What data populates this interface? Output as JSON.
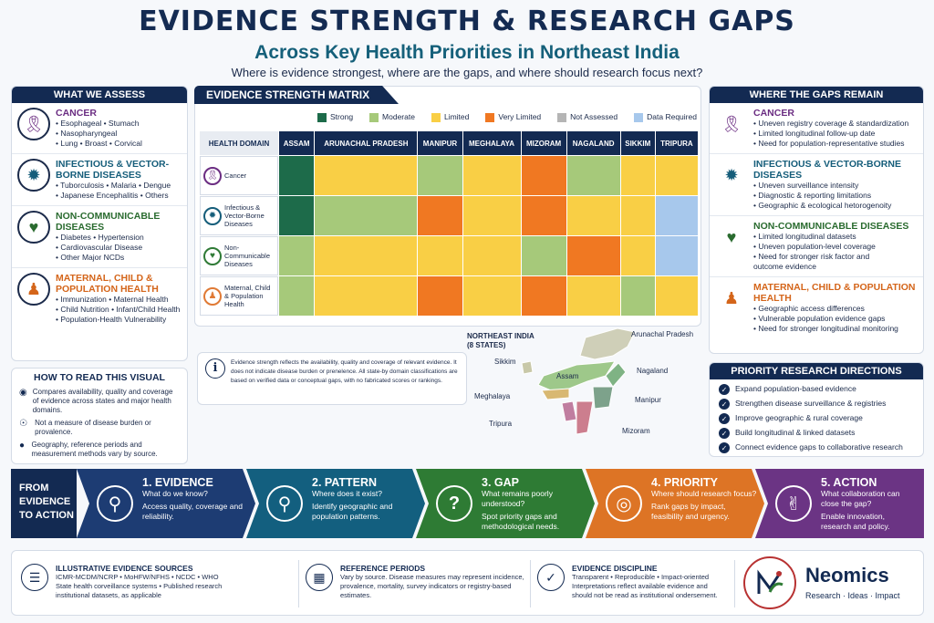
{
  "header": {
    "title": "EVIDENCE STRENGTH & RESEARCH GAPS",
    "subtitle": "Across Key Health Priorities in Northeast India",
    "question": "Where is evidence strongest, where are the gaps, and where should research focus next?"
  },
  "assess": {
    "title": "WHAT WE ASSESS",
    "items": [
      {
        "name": "CANCER",
        "line1": "• Esophageal  • Stumach",
        "line2": "• Nasopharyngeal",
        "line3": "• Lung  • Broast  • Corvical",
        "icon": "ribbon-icon"
      },
      {
        "name": "INFECTIOUS & VECTOR-BORNE DISEASES",
        "line1": "• Tuborculosis  • Malaria  • Dengue",
        "line2": "• Japanese Encephalitis  • Others",
        "line3": "",
        "icon": "virus-icon"
      },
      {
        "name": "NON-COMMUNICABLE DISEASES",
        "line1": "• Diabetes  • Hypertension",
        "line2": "• Cardiovascular Disease",
        "line3": "• Other Major NCDs",
        "icon": "heart-pulse-icon"
      },
      {
        "name": "MATERNAL, CHILD & POPULATION HEALTH",
        "line1": "• Immunization  • Maternal Health",
        "line2": "• Child Nutrition  • Infant/Child Health",
        "line3": "• Population-Health Vulnerability",
        "icon": "family-icon"
      }
    ]
  },
  "howto": {
    "title": "HOW TO READ THIS VISUAL",
    "items": [
      {
        "text": "Compares availability, quality and coverage of evidence across states and major health domains.",
        "icon": "eye-icon"
      },
      {
        "text": "Not a measure of disease burden or provalence.",
        "icon": "target-icon"
      },
      {
        "text": "Geography, reference periods and measurement methods vary by source.",
        "icon": "pin-icon"
      }
    ]
  },
  "matrix": {
    "title": "EVIDENCE STRENGTH MATRIX",
    "legend": [
      {
        "label": "Strong",
        "color": "#1d6b4a"
      },
      {
        "label": "Moderate",
        "color": "#a6c97a"
      },
      {
        "label": "Limited",
        "color": "#f9cf45"
      },
      {
        "label": "Very Limited",
        "color": "#f07822"
      },
      {
        "label": "Not Assessed",
        "color": "#b5b5b5"
      },
      {
        "label": "Data Required",
        "color": "#a7c8ec"
      }
    ],
    "corner": "HEALTH DOMAIN",
    "states": [
      "ASSAM",
      "ARUNACHAL PRADESH",
      "MANIPUR",
      "MEGHALAYA",
      "MIZORAM",
      "NAGALAND",
      "SIKKIM",
      "TRIPURA"
    ],
    "rows": [
      {
        "label": "Cancer",
        "icon": "ribbon-icon",
        "color": "#6b2d82",
        "cells": [
          "#1d6b4a",
          "#f9cf45",
          "#a6c97a",
          "#f9cf45",
          "#f07822",
          "#a6c97a",
          "#f9cf45",
          "#f9cf45"
        ]
      },
      {
        "label": "Infectious & Vector-Borne Diseases",
        "icon": "virus-icon",
        "color": "#155d7a",
        "cells": [
          "#1d6b4a",
          "#a6c97a",
          "#f07822",
          "#f9cf45",
          "#f07822",
          "#f9cf45",
          "#f9cf45",
          "#a7c8ec"
        ]
      },
      {
        "label": "Non-Communicable Diseases",
        "icon": "heart-pulse-icon",
        "color": "#2f7a36",
        "cells": [
          "#a6c97a",
          "#f9cf45",
          "#f9cf45",
          "#f9cf45",
          "#a6c97a",
          "#f07822",
          "#f9cf45",
          "#a7c8ec"
        ]
      },
      {
        "label": "Maternal, Child & Population Health",
        "icon": "family-icon",
        "color": "#e07a35",
        "cells": [
          "#a6c97a",
          "#f9cf45",
          "#f07822",
          "#f9cf45",
          "#f07822",
          "#f9cf45",
          "#a6c97a",
          "#f9cf45"
        ]
      }
    ],
    "note": "Evidence strength reflects the availability, quality and coverage of relevant evidence. It does not indicate disease burden or prenelence. All state-by domain classifications are based on verified data or conceptual gaps, with no fabricated scores or rankings."
  },
  "map": {
    "title": "NORTHEAST INDIA",
    "subtitle": "(8 STATES)",
    "labels": [
      "Arunachal Pradesh",
      "Sikkim",
      "Assam",
      "Nagaland",
      "Meghalaya",
      "Manipur",
      "Tripura",
      "Mizoram"
    ]
  },
  "gaps": {
    "title": "WHERE THE GAPS REMAIN",
    "items": [
      {
        "name": "CANCER",
        "bullets": [
          "• Uneven registry coverage & standardization",
          "• Limited longitudinal follow-up date",
          "• Need for population-representative studies"
        ],
        "icon": "ribbon-icon"
      },
      {
        "name": "INFECTIOUS & VECTOR-BORNE DISEASES",
        "bullets": [
          "• Uneven surveillance intensity",
          "• Diagnostic & reporting limitations",
          "• Geographic & ecological hetorogenoity"
        ],
        "icon": "virus-icon"
      },
      {
        "name": "NON-COMMUNICABLE DISEASES",
        "bullets": [
          "• Limited longitudinal datasets",
          "• Uneven population-level coverage",
          "• Need for stronger risk factor and",
          "   outcome evidence"
        ],
        "icon": "heart-pulse-icon"
      },
      {
        "name": "MATERNAL, CHILD & POPULATION HEALTH",
        "bullets": [
          "• Geographic access differences",
          "• Vulnerable population evidence gaps",
          "• Need for stronger longitudinal monitoring"
        ],
        "icon": "family-icon"
      }
    ]
  },
  "priority": {
    "title": "PRIORITY RESEARCH DIRECTIONS",
    "items": [
      "Expand population-based evidence",
      "Strengthen disease surveillance & registries",
      "Improve geographic & rural coverage",
      "Build longitudinal & linked datasets",
      "Connect evidence gaps to collaborative research"
    ]
  },
  "flow": {
    "label1": "FROM",
    "label2": "EVIDENCE",
    "label3": "TO ACTION",
    "steps": [
      {
        "title": "1. EVIDENCE",
        "q": "What do we know?",
        "d": "Access quality, coverage and reliability.",
        "color": "#1d3c73",
        "icon": "magnifier-chart-icon"
      },
      {
        "title": "2. PATTERN",
        "q": "Where does it exist?",
        "d": "Identify geographic and population patterns.",
        "color": "#135f7f",
        "icon": "map-pin-icon"
      },
      {
        "title": "3. GAP",
        "q": "What remains poorly understood?",
        "d": "Spot priority gaps and methodological needs.",
        "color": "#2e7b34",
        "icon": "question-icon"
      },
      {
        "title": "4. PRIORITY",
        "q": "Where should research focus?",
        "d": "Rank gaps by impact, feasibility and urgency.",
        "color": "#dd7425",
        "icon": "bullseye-icon"
      },
      {
        "title": "5. ACTION",
        "q": "What collaboration can close the gap?",
        "d": "Enable innovation, research and policy.",
        "color": "#6b3484",
        "icon": "handshake-icon"
      }
    ]
  },
  "footer": {
    "sources_title": "ILLUSTRATIVE EVIDENCE SOURCES",
    "sources_l1": "ICMR-MCDM/NCRP  •  MoHFW/NFHS  •  NCDC  •  WHO",
    "sources_l2": "State health corveillance systems  •  Published research",
    "sources_l3": "institutional datasets, as applicable",
    "periods_title": "REFERENCE PERIODS",
    "periods_text": "Vary by source. Disease measures may represent incidence, provalence, mortality, survey indicators or registry-based estimates.",
    "disc_title": "EVIDENCE DISCIPLINE",
    "disc_text": "Transparent  •  Reproducible  •  Impact-oriented Interpretations reflect available evidence and should not be read as institutional ondersement.",
    "brand": "Neomics",
    "tagline": "Research · Ideas · Impact"
  }
}
